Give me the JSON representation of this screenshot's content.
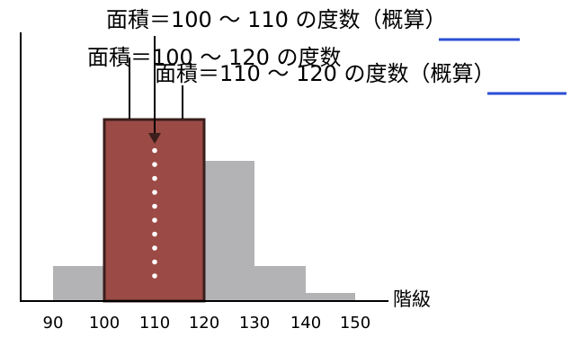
{
  "labels": {
    "top": {
      "prefix": "面積＝100 ～ 110 の度数（",
      "underlined": "概算",
      "suffix": "）"
    },
    "middle": "面積＝100 ～ 120 の度数",
    "lower": {
      "prefix": "面積＝110 ～ 120 の度数（",
      "underlined": "概算",
      "suffix": "）"
    },
    "axis": "階級"
  },
  "colors": {
    "gray_bar": "#b3b3b6",
    "highlight_fill": "#9b4a45",
    "highlight_border": "#3a1f1c",
    "underline": "#2b4fd6",
    "axis": "#000000"
  },
  "chart_data": {
    "type": "bar",
    "categories": [
      "90-100",
      "100-110",
      "110-120",
      "120-130",
      "130-140",
      "140-150"
    ],
    "values": [
      1.5,
      7.5,
      7.5,
      6.0,
      1.5,
      0.3
    ],
    "highlight_range": [
      100,
      120
    ],
    "ticks": [
      "90",
      "100",
      "110",
      "120",
      "130",
      "140",
      "150"
    ]
  }
}
